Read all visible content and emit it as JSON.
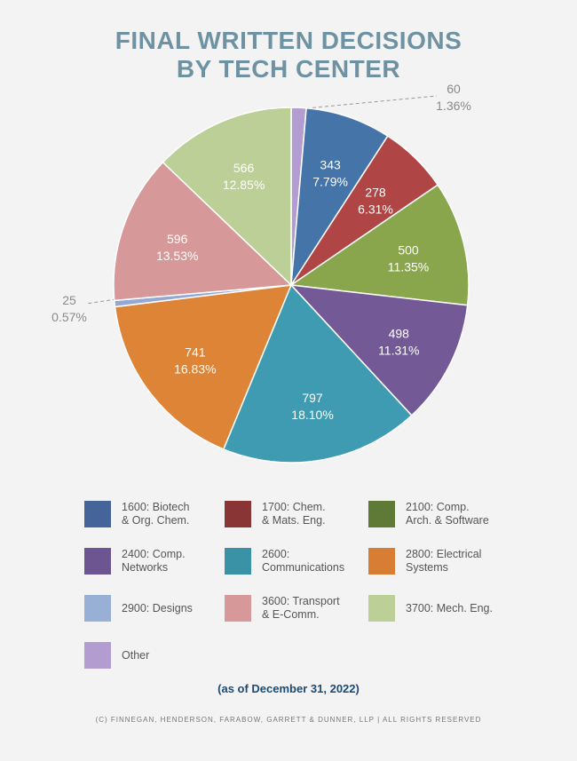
{
  "title_lines": [
    "FINAL WRITTEN DECISIONS",
    "BY TECH CENTER"
  ],
  "chart_data": {
    "type": "pie",
    "slices": [
      {
        "name": "Other",
        "value": 60,
        "percent": "1.36%",
        "color": "#b39cd0"
      },
      {
        "name": "1600: Biotech & Org. Chem.",
        "value": 343,
        "percent": "7.79%",
        "color": "#4574a8"
      },
      {
        "name": "1700: Chem. & Mats. Eng.",
        "value": 278,
        "percent": "6.31%",
        "color": "#b04545"
      },
      {
        "name": "2100: Comp. Arch. & Software",
        "value": 500,
        "percent": "11.35%",
        "color": "#8aa64c"
      },
      {
        "name": "2400: Comp. Networks",
        "value": 498,
        "percent": "11.31%",
        "color": "#735a96"
      },
      {
        "name": "2600: Communications",
        "value": 797,
        "percent": "18.10%",
        "color": "#3f9bb1"
      },
      {
        "name": "2800: Electrical Systems",
        "value": 741,
        "percent": "16.83%",
        "color": "#dd8437"
      },
      {
        "name": "2900: Designs",
        "value": 25,
        "percent": "0.57%",
        "color": "#93a9d4"
      },
      {
        "name": "3600: Transport & E-Comm.",
        "value": 596,
        "percent": "13.53%",
        "color": "#d69898"
      },
      {
        "name": "3700: Mech. Eng.",
        "value": 566,
        "percent": "12.85%",
        "color": "#bccf96"
      }
    ]
  },
  "legend": [
    {
      "label": "1600: Biotech\n& Org. Chem.",
      "color": "#44649a"
    },
    {
      "label": "1700: Chem.\n& Mats. Eng.",
      "color": "#8a3535"
    },
    {
      "label": "2100: Comp.\nArch. & Software",
      "color": "#5f7a37"
    },
    {
      "label": "2400: Comp.\nNetworks",
      "color": "#6c5590"
    },
    {
      "label": "2600:\nCommunications",
      "color": "#3a92a7"
    },
    {
      "label": "2800: Electrical\nSystems",
      "color": "#d77d34"
    },
    {
      "label": "2900: Designs",
      "color": "#98afd6"
    },
    {
      "label": "3600: Transport\n& E-Comm.",
      "color": "#d69898"
    },
    {
      "label": "3700: Mech. Eng.",
      "color": "#bccf96"
    },
    {
      "label": "Other",
      "color": "#b39cd0"
    }
  ],
  "note": "(as of December 31, 2022)",
  "copyright": "(C) FINNEGAN, HENDERSON, FARABOW, GARRETT & DUNNER, LLP | ALL RIGHTS RESERVED"
}
